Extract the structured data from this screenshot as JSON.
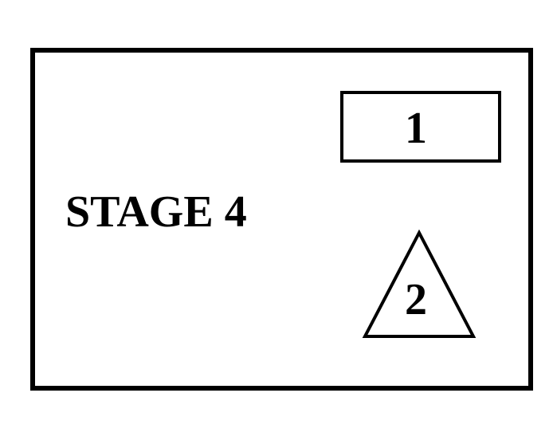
{
  "diagram": {
    "stage_label": "STAGE 4",
    "shapes": [
      {
        "kind": "rectangle",
        "label": "1"
      },
      {
        "kind": "triangle",
        "label": "2"
      }
    ]
  },
  "colors": {
    "stroke": "#000000",
    "background": "#ffffff"
  }
}
